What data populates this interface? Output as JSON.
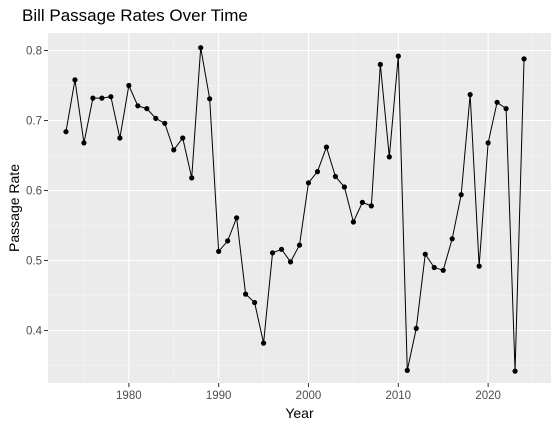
{
  "chart_data": {
    "type": "line",
    "title": "Bill Passage Rates Over Time",
    "xlabel": "Year",
    "ylabel": "Passage Rate",
    "xlim": [
      1971,
      2027
    ],
    "ylim": [
      0.325,
      0.825
    ],
    "x_ticks": [
      1980,
      1990,
      2000,
      2010,
      2020
    ],
    "y_ticks": [
      0.4,
      0.5,
      0.6,
      0.7,
      0.8
    ],
    "x_tick_labels": [
      "1980",
      "1990",
      "2000",
      "2010",
      "2020"
    ],
    "y_tick_labels": [
      "0.4",
      "0.5",
      "0.6",
      "0.7",
      "0.8"
    ],
    "grid": true,
    "legend": "none",
    "colors": {
      "panel": "#ebebeb",
      "grid_major": "#ffffff",
      "grid_minor": "#f5f5f5",
      "line": "#000000",
      "point": "#000000"
    },
    "series": [
      {
        "x": [
          1973,
          1974,
          1975,
          1976,
          1977,
          1978,
          1979,
          1980,
          1981,
          1982,
          1983,
          1984,
          1985,
          1986,
          1987,
          1988,
          1989,
          1990,
          1991,
          1992,
          1993,
          1994,
          1995,
          1996,
          1997,
          1998,
          1999,
          2000,
          2001,
          2002,
          2003,
          2004,
          2005,
          2006,
          2007,
          2008,
          2009,
          2010,
          2011,
          2012,
          2013,
          2014,
          2015,
          2016,
          2017,
          2018,
          2019,
          2020,
          2021,
          2022,
          2023,
          2024
        ],
        "values": [
          0.684,
          0.758,
          0.668,
          0.732,
          0.732,
          0.734,
          0.675,
          0.75,
          0.721,
          0.717,
          0.703,
          0.696,
          0.658,
          0.675,
          0.618,
          0.804,
          0.731,
          0.513,
          0.528,
          0.561,
          0.452,
          0.44,
          0.382,
          0.511,
          0.516,
          0.498,
          0.522,
          0.611,
          0.627,
          0.662,
          0.62,
          0.605,
          0.555,
          0.583,
          0.578,
          0.78,
          0.648,
          0.792,
          0.343,
          0.403,
          0.509,
          0.49,
          0.486,
          0.531,
          0.594,
          0.737,
          0.492,
          0.668,
          0.726,
          0.717,
          0.342,
          0.788
        ]
      }
    ]
  }
}
